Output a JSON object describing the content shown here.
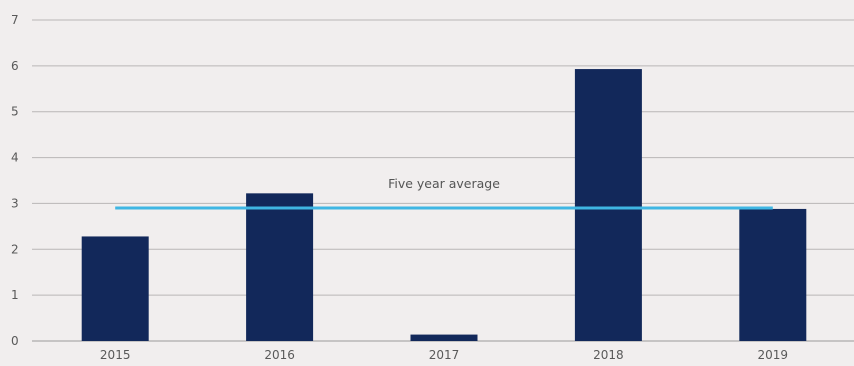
{
  "chart_data": {
    "type": "bar",
    "categories": [
      "2015",
      "2016",
      "2017",
      "2018",
      "2019"
    ],
    "values": [
      2.28,
      3.22,
      0.14,
      5.93,
      2.88
    ],
    "title": "",
    "xlabel": "",
    "ylabel": "",
    "ylim": [
      0,
      7
    ],
    "yticks": [
      "0",
      "1",
      "2",
      "3",
      "4",
      "5",
      "6",
      "7"
    ],
    "grid": true,
    "bar_color": "#12285a",
    "reference_line": {
      "label": "Five year average",
      "value": 2.9,
      "color": "#3fb6e3"
    }
  }
}
